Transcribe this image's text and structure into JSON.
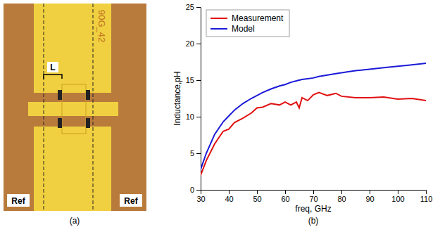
{
  "panel_a": {
    "label": "(a)",
    "length_label": "L",
    "chip_label": "90G_42",
    "ref_left": "Ref",
    "ref_right": "Ref"
  },
  "panel_b_label": "(b)",
  "chart_data": {
    "type": "line",
    "x_label": "freq, GHz",
    "y_label": "Inductance,pH",
    "x": [
      30,
      32,
      35,
      38,
      40,
      42,
      45,
      48,
      50,
      52,
      55,
      58,
      60,
      62,
      64,
      65,
      66,
      68,
      70,
      72,
      75,
      78,
      80,
      85,
      90,
      95,
      100,
      105,
      110
    ],
    "series": [
      {
        "name": "Measurement",
        "color": "#e01010",
        "values": [
          2.0,
          4.0,
          6.3,
          8.0,
          8.3,
          9.2,
          9.8,
          10.5,
          11.2,
          11.3,
          11.8,
          11.6,
          12.0,
          11.6,
          12.0,
          11.2,
          12.6,
          12.2,
          13.0,
          13.3,
          12.9,
          13.2,
          12.8,
          12.6,
          12.6,
          12.7,
          12.4,
          12.5,
          12.2
        ]
      },
      {
        "name": "Model",
        "color": "#1a1ad8",
        "values": [
          2.8,
          5.0,
          7.6,
          9.3,
          10.1,
          10.9,
          11.8,
          12.5,
          12.9,
          13.3,
          13.8,
          14.2,
          14.4,
          14.7,
          14.9,
          15.0,
          15.1,
          15.2,
          15.3,
          15.5,
          15.7,
          15.9,
          16.0,
          16.3,
          16.5,
          16.7,
          16.9,
          17.1,
          17.3
        ]
      }
    ],
    "xlim": [
      30,
      110
    ],
    "xticks": [
      30,
      40,
      50,
      60,
      70,
      80,
      90,
      100,
      110
    ],
    "ylim": [
      0,
      25
    ],
    "yticks": [
      0,
      5,
      10,
      15,
      20,
      25
    ],
    "grid": false,
    "legend": "upper left"
  }
}
